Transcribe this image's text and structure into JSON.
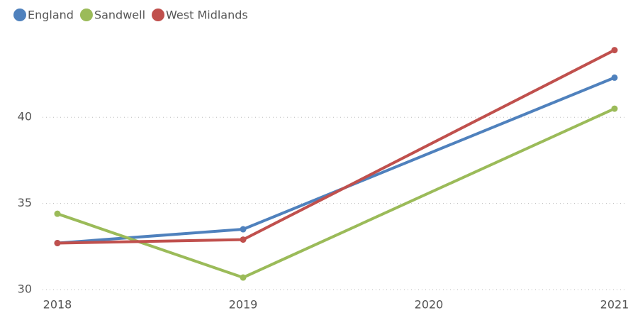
{
  "chart_data": {
    "type": "line",
    "categories": [
      "2018",
      "2019",
      "2020",
      "2021"
    ],
    "series": [
      {
        "name": "England",
        "color": "#4f81bd",
        "values": [
          32.7,
          33.5,
          null,
          42.3
        ]
      },
      {
        "name": "Sandwell",
        "color": "#9bbb59",
        "values": [
          34.4,
          30.7,
          null,
          40.5
        ]
      },
      {
        "name": "West Midlands",
        "color": "#c0504d",
        "values": [
          32.7,
          32.9,
          null,
          43.9
        ]
      }
    ],
    "ylim": [
      30,
      44.5
    ],
    "yticks": [
      30,
      35,
      40
    ],
    "grid": true,
    "legend": "top-left"
  }
}
